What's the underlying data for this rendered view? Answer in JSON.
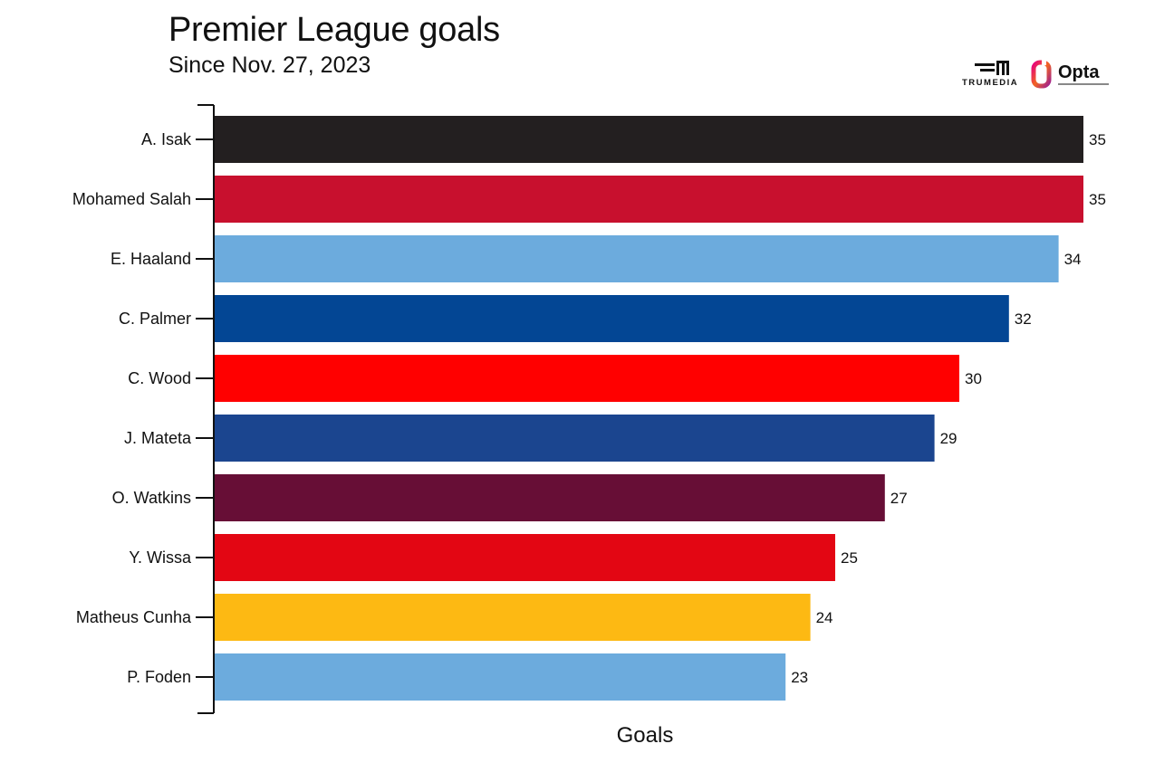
{
  "title": "Premier League goals",
  "subtitle": "Since Nov. 27, 2023",
  "logos": {
    "trumedia": "TRUMEDIA",
    "opta": "Opta"
  },
  "chart_data": {
    "type": "bar",
    "orientation": "horizontal",
    "title": "Premier League goals",
    "subtitle": "Since Nov. 27, 2023",
    "xlabel": "Goals",
    "ylabel": "",
    "categories": [
      "A. Isak",
      "Mohamed Salah",
      "E. Haaland",
      "C. Palmer",
      "C. Wood",
      "J. Mateta",
      "O. Watkins",
      "Y. Wissa",
      "Matheus Cunha",
      "P. Foden"
    ],
    "values": [
      35,
      35,
      34,
      32,
      30,
      29,
      27,
      25,
      24,
      23
    ],
    "colors": [
      "#231f20",
      "#c8102e",
      "#6cabdd",
      "#034694",
      "#ff0000",
      "#1b458f",
      "#670e36",
      "#e30613",
      "#fdb913",
      "#6cabdd"
    ],
    "xlim": [
      0,
      35
    ],
    "grid": false,
    "legend": "none",
    "data_labels": true
  }
}
